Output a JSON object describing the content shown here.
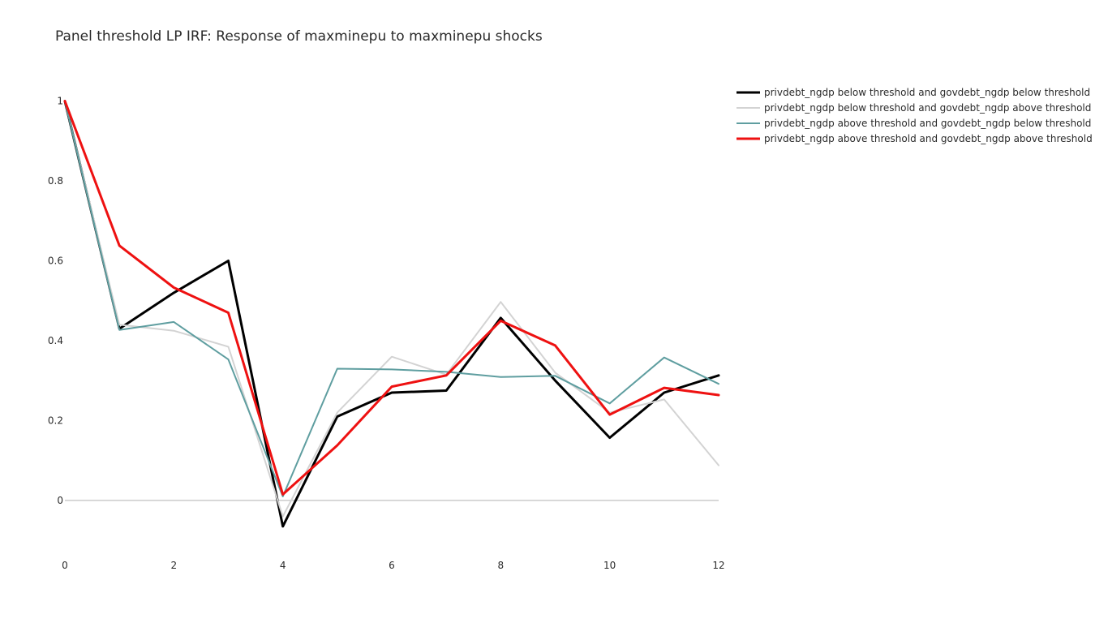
{
  "chart_data": {
    "type": "line",
    "title": "Panel threshold LP IRF: Response of maxminepu to maxminepu shocks",
    "xlabel": "",
    "ylabel": "",
    "xlim": [
      0,
      12
    ],
    "ylim": [
      -0.12,
      1.05
    ],
    "x_ticks": [
      0,
      2,
      4,
      6,
      8,
      10,
      12
    ],
    "y_ticks": [
      0,
      0.2,
      0.4,
      0.6,
      0.8,
      1
    ],
    "y_tick_labels": [
      "0",
      "0.2",
      "0.4",
      "0.6",
      "0.8",
      "1"
    ],
    "x_tick_labels": [
      "0",
      "2",
      "4",
      "6",
      "8",
      "10",
      "12"
    ],
    "grid": false,
    "zero_line": true,
    "legend_position": "top-right",
    "x": [
      0,
      1,
      2,
      3,
      4,
      5,
      6,
      7,
      8,
      9,
      10,
      11,
      12
    ],
    "series": [
      {
        "name": "privdebt_ngdp below threshold and govdebt_ngdp below threshold",
        "color": "#000000",
        "width": 3,
        "values": [
          1.0,
          0.43,
          0.52,
          0.6,
          -0.065,
          0.21,
          0.27,
          0.275,
          0.457,
          0.3,
          0.157,
          0.27,
          0.313
        ]
      },
      {
        "name": "privdebt_ngdp below threshold and govdebt_ngdp above threshold",
        "color": "#d3d3d3",
        "width": 2,
        "values": [
          1.0,
          0.44,
          0.425,
          0.385,
          -0.04,
          0.22,
          0.36,
          0.315,
          0.497,
          0.32,
          0.22,
          0.253,
          0.088
        ]
      },
      {
        "name": "privdebt_ngdp above threshold and govdebt_ngdp below threshold",
        "color": "#5f9ea0",
        "width": 2,
        "values": [
          1.0,
          0.427,
          0.447,
          0.353,
          0.01,
          0.33,
          0.328,
          0.322,
          0.309,
          0.312,
          0.243,
          0.358,
          0.292
        ]
      },
      {
        "name": "privdebt_ngdp above threshold and govdebt_ngdp above threshold",
        "color": "#ee1111",
        "width": 3,
        "values": [
          1.0,
          0.638,
          0.533,
          0.47,
          0.015,
          0.138,
          0.285,
          0.313,
          0.45,
          0.388,
          0.215,
          0.282,
          0.264
        ]
      }
    ]
  }
}
